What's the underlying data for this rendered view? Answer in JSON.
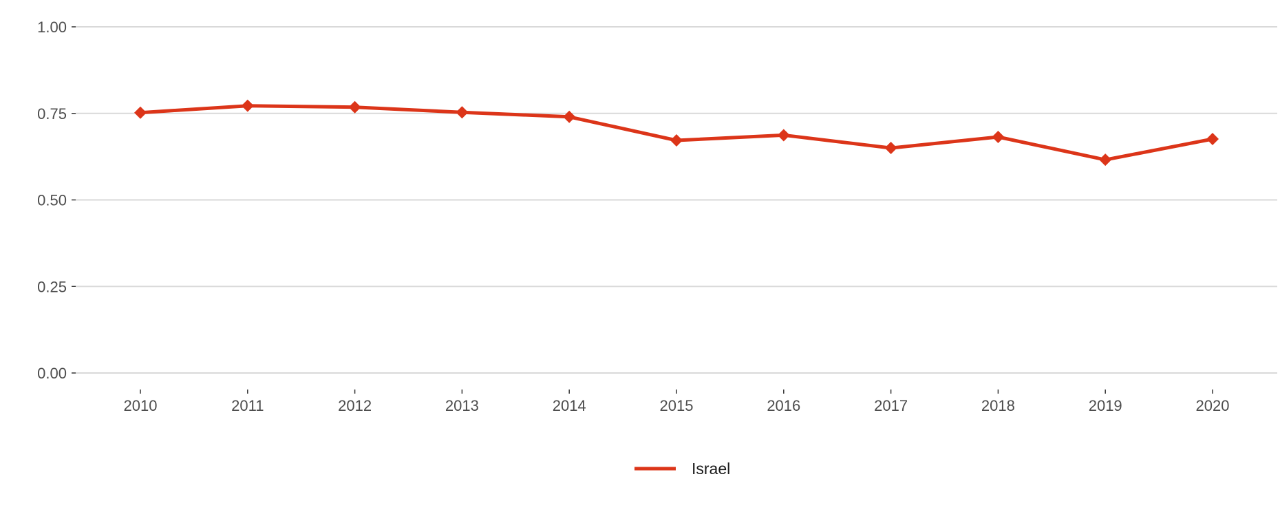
{
  "chart_data": {
    "type": "line",
    "title": "",
    "xlabel": "",
    "ylabel": "",
    "x": [
      "2010",
      "2011",
      "2012",
      "2013",
      "2014",
      "2015",
      "2016",
      "2017",
      "2018",
      "2019",
      "2020"
    ],
    "ylim": [
      0,
      1
    ],
    "yticks": [
      0,
      0.25,
      0.5,
      0.75,
      1
    ],
    "ytick_labels": [
      "0.00",
      "0.25",
      "0.50",
      "0.75",
      "1.00"
    ],
    "grid": true,
    "legend_position": "bottom-center",
    "series": [
      {
        "name": "Israel",
        "color": "#dc3519",
        "marker": "diamond",
        "values": [
          0.752,
          0.772,
          0.768,
          0.753,
          0.74,
          0.672,
          0.687,
          0.65,
          0.682,
          0.616,
          0.676
        ]
      }
    ]
  }
}
